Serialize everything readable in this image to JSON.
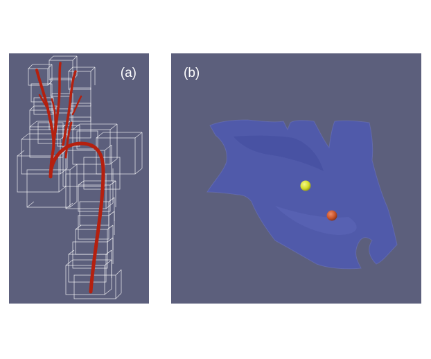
{
  "panels": {
    "a": {
      "label": "(a)"
    },
    "b": {
      "label": "(b)"
    }
  },
  "colors": {
    "background": "#5c5f7c",
    "vessel": "#b5200f",
    "box_outline": "#ffffff",
    "surface": "#4e5ab0",
    "marker_yellow": "#d6dd2a",
    "marker_orange": "#c9532a"
  }
}
